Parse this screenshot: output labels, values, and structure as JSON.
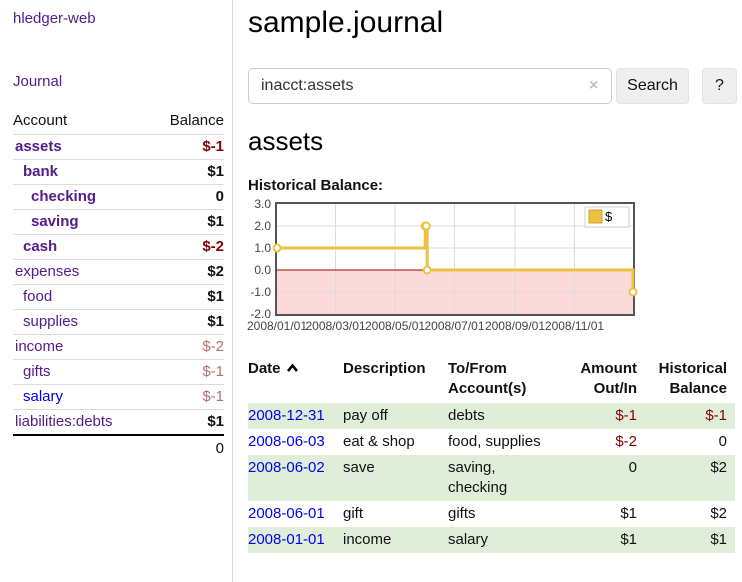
{
  "app": {
    "brand": "hledger-web"
  },
  "sidebar": {
    "journal_link": "Journal",
    "account_header": "Account",
    "balance_header": "Balance",
    "accounts": [
      {
        "name": "assets",
        "indent": 0,
        "bold": true,
        "balance": "$-1",
        "balance_style": "neg-strong"
      },
      {
        "name": "bank",
        "indent": 1,
        "bold": true,
        "balance": "$1",
        "balance_style": "pos"
      },
      {
        "name": "checking",
        "indent": 2,
        "bold": true,
        "balance": "0",
        "balance_style": "pos"
      },
      {
        "name": "saving",
        "indent": 2,
        "bold": true,
        "balance": "$1",
        "balance_style": "pos"
      },
      {
        "name": "cash",
        "indent": 1,
        "bold": true,
        "balance": "$-2",
        "balance_style": "neg-strong"
      },
      {
        "name": "expenses",
        "indent": 0,
        "bold": false,
        "balance": "$2",
        "balance_style": "pos"
      },
      {
        "name": "food",
        "indent": 1,
        "bold": false,
        "balance": "$1",
        "balance_style": "pos"
      },
      {
        "name": "supplies",
        "indent": 1,
        "bold": false,
        "balance": "$1",
        "balance_style": "pos"
      },
      {
        "name": "income",
        "indent": 0,
        "bold": false,
        "balance": "$-2",
        "balance_style": "neg-soft"
      },
      {
        "name": "gifts",
        "indent": 1,
        "bold": false,
        "balance": "$-1",
        "balance_style": "neg-soft"
      },
      {
        "name": "salary",
        "indent": 1,
        "bold": false,
        "balance": "$-1",
        "balance_style": "neg-soft",
        "link_color": "blue"
      },
      {
        "name": "liabilities:debts",
        "indent": 0,
        "bold": false,
        "balance": "$1",
        "balance_style": "pos"
      }
    ],
    "total": "0"
  },
  "header": {
    "title": "sample.journal"
  },
  "search": {
    "value": "inacct:assets",
    "button_label": "Search",
    "help_label": "?"
  },
  "icons": {
    "clear_search": "×",
    "sort_ascending": "chevron-up"
  },
  "account_page": {
    "title": "assets",
    "chart_label": "Historical Balance:"
  },
  "chart_data": {
    "type": "line",
    "step": true,
    "title": "Historical Balance:",
    "x_range": [
      "2008-01-01",
      "2008-12-31"
    ],
    "ylim": [
      -2,
      3
    ],
    "yticks": [
      3.0,
      2.0,
      1.0,
      0.0,
      -1.0,
      -2.0
    ],
    "xticks": [
      {
        "date": "2008-01-01",
        "label": "2008/01/01"
      },
      {
        "date": "2008-03-01",
        "label": "2008/03/01"
      },
      {
        "date": "2008-05-01",
        "label": "2008/05/01"
      },
      {
        "date": "2008-07-01",
        "label": "2008/07/01"
      },
      {
        "date": "2008-09-01",
        "label": "2008/09/01"
      },
      {
        "date": "2008-11-01",
        "label": "2008/11/01"
      }
    ],
    "series": [
      {
        "name": "$",
        "color": "#edc240",
        "points": [
          [
            "2008-01-01",
            1
          ],
          [
            "2008-06-01",
            2
          ],
          [
            "2008-06-02",
            2
          ],
          [
            "2008-06-03",
            0
          ],
          [
            "2008-12-31",
            -1
          ]
        ]
      }
    ],
    "legend_position": "top-right",
    "grid": true,
    "negative_region_color": "#fbdada",
    "zero_line_color": "#9c0000",
    "border_color": "#545454",
    "gridline_color": "#dcdcdc"
  },
  "register": {
    "headers": {
      "date": "Date",
      "description": "Description",
      "accounts": "To/From Account(s)",
      "amount": "Amount Out/In",
      "balance": "Historical Balance"
    },
    "rows": [
      {
        "date": "2008-12-31",
        "description": "pay off",
        "accounts": "debts",
        "amount": "$-1",
        "balance": "$-1",
        "amount_negative": true,
        "balance_negative": true
      },
      {
        "date": "2008-06-03",
        "description": "eat & shop",
        "accounts": "food, supplies",
        "amount": "$-2",
        "balance": "0",
        "amount_negative": true,
        "balance_negative": false
      },
      {
        "date": "2008-06-02",
        "description": "save",
        "accounts": "saving, checking",
        "amount": "0",
        "balance": "$2",
        "amount_negative": false,
        "balance_negative": false
      },
      {
        "date": "2008-06-01",
        "description": "gift",
        "accounts": "gifts",
        "amount": "$1",
        "balance": "$2",
        "amount_negative": false,
        "balance_negative": false
      },
      {
        "date": "2008-01-01",
        "description": "income",
        "accounts": "salary",
        "amount": "$1",
        "balance": "$1",
        "amount_negative": false,
        "balance_negative": false
      }
    ]
  },
  "colors": {
    "link_purple": "#551a8b",
    "link_blue": "#0000ee",
    "negative_strong": "#8b0000",
    "negative_soft": "#b96c6c",
    "row_stripe_green": "#dfeed8",
    "chart_line": "#edc240"
  }
}
